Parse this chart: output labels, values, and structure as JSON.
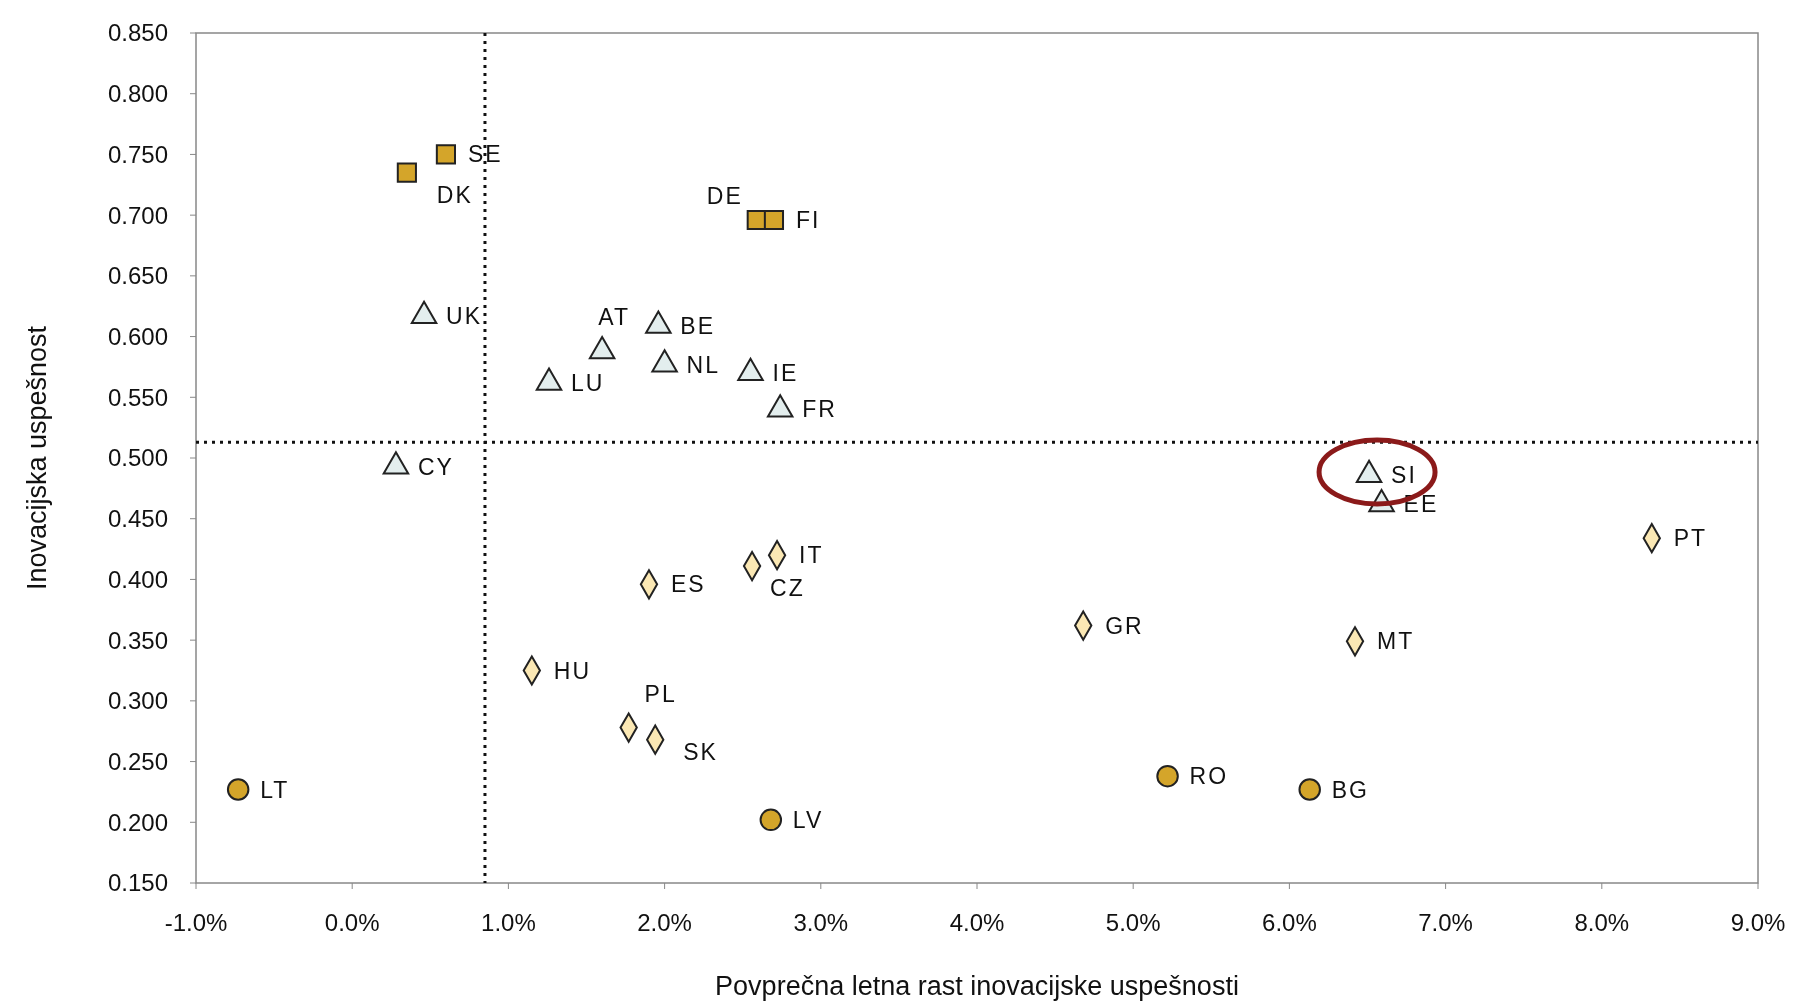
{
  "chart_data": {
    "type": "scatter",
    "xlabel": "Povprečna letna rast inovacijske uspešnosti",
    "ylabel": "Inovacijska uspešnost",
    "xlim": [
      -1,
      9
    ],
    "ylim": [
      0.15,
      0.85
    ],
    "xticks": [
      {
        "value": -1,
        "label": "-1.0%"
      },
      {
        "value": 0,
        "label": "0.0%"
      },
      {
        "value": 1,
        "label": "1.0%"
      },
      {
        "value": 2,
        "label": "2.0%"
      },
      {
        "value": 3,
        "label": "3.0%"
      },
      {
        "value": 4,
        "label": "4.0%"
      },
      {
        "value": 5,
        "label": "5.0%"
      },
      {
        "value": 6,
        "label": "6.0%"
      },
      {
        "value": 7,
        "label": "7.0%"
      },
      {
        "value": 8,
        "label": "8.0%"
      },
      {
        "value": 9,
        "label": "9.0%"
      }
    ],
    "yticks": [
      {
        "value": 0.15,
        "label": "0.150"
      },
      {
        "value": 0.2,
        "label": "0.200"
      },
      {
        "value": 0.25,
        "label": "0.250"
      },
      {
        "value": 0.3,
        "label": "0.300"
      },
      {
        "value": 0.35,
        "label": "0.350"
      },
      {
        "value": 0.4,
        "label": "0.400"
      },
      {
        "value": 0.45,
        "label": "0.450"
      },
      {
        "value": 0.5,
        "label": "0.500"
      },
      {
        "value": 0.55,
        "label": "0.550"
      },
      {
        "value": 0.6,
        "label": "0.600"
      },
      {
        "value": 0.65,
        "label": "0.650"
      },
      {
        "value": 0.7,
        "label": "0.700"
      },
      {
        "value": 0.75,
        "label": "0.750"
      },
      {
        "value": 0.8,
        "label": "0.800"
      },
      {
        "value": 0.85,
        "label": "0.850"
      }
    ],
    "grid": false,
    "series": [
      {
        "color": "#d4a52a",
        "marker": "square",
        "x": [
          0.6,
          0.35,
          2.59,
          2.7
        ],
        "values": [
          0.75,
          0.735,
          0.696,
          0.696
        ]
      },
      {
        "color": "#e3eeee",
        "marker": "triangle",
        "x": [
          0.46,
          1.6,
          1.96,
          2.0,
          1.26,
          2.55,
          2.74,
          0.28,
          6.51,
          6.59
        ],
        "values": [
          0.617,
          0.588,
          0.609,
          0.577,
          0.562,
          0.57,
          0.54,
          0.493,
          0.486,
          0.462
        ]
      },
      {
        "color": "#fbe8b4",
        "marker": "diamond",
        "x": [
          8.32,
          2.72,
          2.56,
          1.9,
          4.68,
          6.42,
          1.15,
          1.77,
          1.94
        ],
        "values": [
          0.434,
          0.42,
          0.411,
          0.396,
          0.362,
          0.349,
          0.325,
          0.278,
          0.268
        ]
      },
      {
        "color": "#d4a52a",
        "marker": "circle",
        "x": [
          -0.73,
          2.68,
          5.22,
          6.13
        ],
        "values": [
          0.227,
          0.202,
          0.238,
          0.227
        ]
      }
    ],
    "ref_lines": [
      {
        "axis": "x",
        "value": 0.85,
        "line_style": "dotted"
      },
      {
        "axis": "y",
        "value": 0.513,
        "line_style": "dotted"
      }
    ],
    "annotations": [
      {
        "text": "SE",
        "x": 0.6,
        "y": 0.75
      },
      {
        "text": "DK",
        "x": 0.35,
        "y": 0.735
      },
      {
        "text": "DE",
        "x": 2.59,
        "y": 0.696
      },
      {
        "text": "FI",
        "x": 2.7,
        "y": 0.696
      },
      {
        "text": "UK",
        "x": 0.46,
        "y": 0.617
      },
      {
        "text": "AT",
        "x": 1.6,
        "y": 0.588
      },
      {
        "text": "BE",
        "x": 1.96,
        "y": 0.609
      },
      {
        "text": "NL",
        "x": 2.0,
        "y": 0.577
      },
      {
        "text": "LU",
        "x": 1.26,
        "y": 0.562
      },
      {
        "text": "IE",
        "x": 2.55,
        "y": 0.57
      },
      {
        "text": "FR",
        "x": 2.74,
        "y": 0.54
      },
      {
        "text": "CY",
        "x": 0.28,
        "y": 0.493
      },
      {
        "text": "SI",
        "x": 6.51,
        "y": 0.486
      },
      {
        "text": "EE",
        "x": 6.59,
        "y": 0.462
      },
      {
        "text": "PT",
        "x": 8.32,
        "y": 0.434
      },
      {
        "text": "IT",
        "x": 2.72,
        "y": 0.42
      },
      {
        "text": "CZ",
        "x": 2.56,
        "y": 0.411
      },
      {
        "text": "ES",
        "x": 1.9,
        "y": 0.396
      },
      {
        "text": "GR",
        "x": 4.68,
        "y": 0.362
      },
      {
        "text": "MT",
        "x": 6.42,
        "y": 0.349
      },
      {
        "text": "HU",
        "x": 1.15,
        "y": 0.325
      },
      {
        "text": "PL",
        "x": 1.77,
        "y": 0.278
      },
      {
        "text": "SK",
        "x": 1.94,
        "y": 0.268
      },
      {
        "text": "LT",
        "x": -0.73,
        "y": 0.227
      },
      {
        "text": "LV",
        "x": 2.68,
        "y": 0.202
      },
      {
        "text": "RO",
        "x": 5.22,
        "y": 0.238
      },
      {
        "text": "BG",
        "x": 6.13,
        "y": 0.227
      }
    ]
  }
}
